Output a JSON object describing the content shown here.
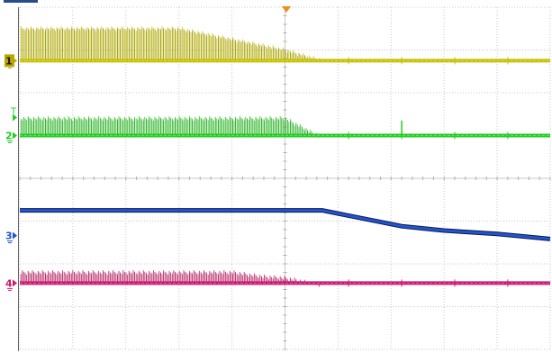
{
  "chart_data": {
    "type": "line",
    "title": "",
    "xlabel": "",
    "ylabel": "",
    "grid": true,
    "legend": "none",
    "trigger_marker": "top-center",
    "x": [
      0,
      1,
      2,
      3,
      4,
      5,
      6,
      7,
      8,
      9,
      10
    ],
    "xlim": [
      0,
      10
    ],
    "ylim": [
      0,
      8
    ],
    "series": [
      {
        "name": "1",
        "color": "#c8c000",
        "marker_color": "#b8a800",
        "display": "dense-pulse-burst",
        "baseline": 6.75,
        "envelope_x": [
          0,
          1,
          2,
          3,
          4,
          5,
          5.7,
          10
        ],
        "envelope": [
          7.55,
          7.55,
          7.55,
          7.55,
          7.3,
          7.05,
          6.8,
          6.8
        ]
      },
      {
        "name": "2",
        "color": "#22cc22",
        "marker_color": "#22cc22",
        "display": "dense-pulse-burst",
        "baseline": 5.0,
        "envelope_x": [
          0,
          1,
          2,
          3,
          4,
          5,
          5.7,
          7.2,
          10
        ],
        "envelope": [
          5.45,
          5.45,
          5.45,
          5.45,
          5.45,
          5.45,
          5.0,
          5.0,
          5.0
        ],
        "spike_x": 7.2,
        "spike_y": 5.35
      },
      {
        "name": "3",
        "color": "#2255cc",
        "marker_color": "#2255cc",
        "display": "level",
        "x": [
          0,
          1,
          2,
          3,
          4,
          5,
          5.7,
          7.2,
          8,
          9,
          10
        ],
        "values": [
          3.25,
          3.25,
          3.25,
          3.25,
          3.25,
          3.25,
          3.25,
          2.88,
          2.78,
          2.7,
          2.58
        ]
      },
      {
        "name": "4",
        "color": "#cc1a70",
        "marker_color": "#cc1a70",
        "display": "dense-pulse-burst",
        "baseline": 1.55,
        "envelope_x": [
          0,
          1,
          2,
          3,
          4,
          4.6,
          5,
          5.7,
          10
        ],
        "envelope": [
          1.85,
          1.85,
          1.85,
          1.85,
          1.85,
          1.75,
          1.72,
          1.55,
          1.55
        ]
      }
    ]
  }
}
